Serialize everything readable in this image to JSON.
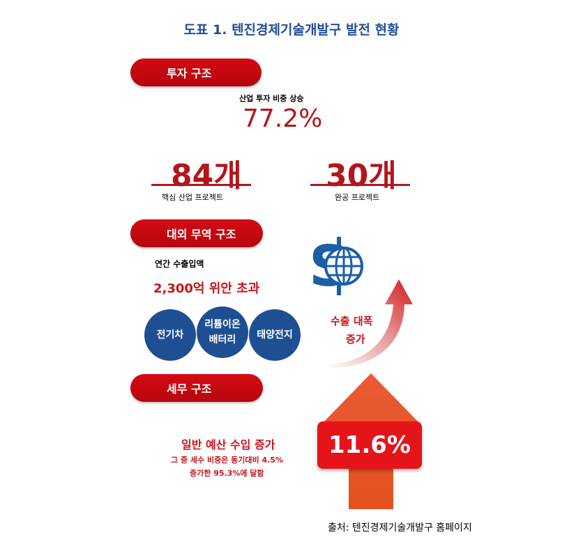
{
  "title": "도표 1. 텐진경제기술개발구 발전 현황",
  "investment": {
    "header": "투자 구조",
    "share_label": "산업 투자 비중 상승",
    "share_value": "77.2%",
    "core_count": "84개",
    "core_label": "핵심 산업 프로젝트",
    "done_count": "30개",
    "done_label": "완공 프로젝트"
  },
  "trade": {
    "header": "대외 무역 구조",
    "annual_label": "연간 수출입액",
    "annual_value": "2,300억 위안 초과",
    "items": [
      "전기차",
      "리튬이온\n배터리",
      "태양전지"
    ],
    "export_text_1": "수출 대폭",
    "export_text_2": "증가"
  },
  "tax": {
    "header": "세무 구조",
    "line1": "일반 예산 수입 증가",
    "line2": "그 중 세수 비중은 동기대비 4.5%",
    "line3": "증가한 95.3%에 달함",
    "growth": "11.6%"
  },
  "source": "출처:  텐진경제기술개발구  홈페이지",
  "colors": {
    "accent_red": "#c8141b",
    "navy": "#1e4f93",
    "title_blue": "#1f4e9a"
  }
}
